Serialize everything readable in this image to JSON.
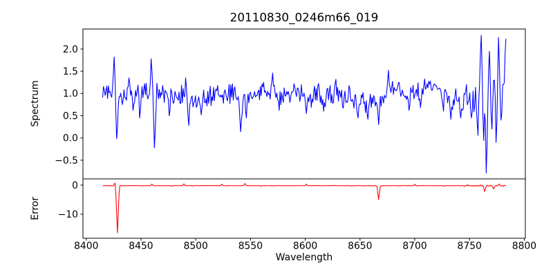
{
  "figure": {
    "title": "20110830_0246m66_019",
    "xlabel": "Wavelength",
    "background_color": "#ffffff",
    "axis_color": "#000000",
    "text_color": "#000000",
    "xlim": [
      8397,
      8801
    ],
    "xticks": [
      {
        "v": 8400,
        "label": "8400"
      },
      {
        "v": 8450,
        "label": "8450"
      },
      {
        "v": 8500,
        "label": "8500"
      },
      {
        "v": 8550,
        "label": "8550"
      },
      {
        "v": 8600,
        "label": "8600"
      },
      {
        "v": 8650,
        "label": "8650"
      },
      {
        "v": 8700,
        "label": "8700"
      },
      {
        "v": 8750,
        "label": "8750"
      },
      {
        "v": 8800,
        "label": "8800"
      }
    ]
  },
  "chart_data": [
    {
      "type": "line",
      "name": "spectrum",
      "title": "20110830_0246m66_019",
      "xlabel": "",
      "ylabel": "Spectrum",
      "color": "#0000ff",
      "line_width": 1.1,
      "grid": false,
      "legend": null,
      "x_start": 8415,
      "x_end": 8783,
      "x_step": 0.75,
      "ylim": [
        -0.92,
        2.45
      ],
      "yticks": [
        {
          "v": -0.5,
          "label": "−0.5"
        },
        {
          "v": 0.0,
          "label": "0.0"
        },
        {
          "v": 0.5,
          "label": "0.5"
        },
        {
          "v": 1.0,
          "label": "1.0"
        },
        {
          "v": 1.5,
          "label": "1.5"
        },
        {
          "v": 2.0,
          "label": "2.0"
        }
      ],
      "baseline": [
        [
          8415,
          1.0
        ],
        [
          8430,
          0.98
        ],
        [
          8455,
          1.0
        ],
        [
          8475,
          0.95
        ],
        [
          8500,
          0.9
        ],
        [
          8515,
          0.97
        ],
        [
          8530,
          1.0
        ],
        [
          8542,
          0.88
        ],
        [
          8555,
          0.97
        ],
        [
          8570,
          1.02
        ],
        [
          8590,
          0.95
        ],
        [
          8610,
          0.92
        ],
        [
          8630,
          0.95
        ],
        [
          8645,
          0.82
        ],
        [
          8658,
          0.78
        ],
        [
          8666,
          0.85
        ],
        [
          8674,
          1.02
        ],
        [
          8682,
          1.05
        ],
        [
          8692,
          0.95
        ],
        [
          8702,
          1.0
        ],
        [
          8714,
          1.15
        ],
        [
          8722,
          1.08
        ],
        [
          8732,
          0.88
        ],
        [
          8742,
          0.82
        ],
        [
          8750,
          0.85
        ],
        [
          8758,
          0.95
        ],
        [
          8770,
          1.0
        ],
        [
          8783,
          1.1
        ]
      ],
      "noise_amplitude": 0.28,
      "noisy_region": {
        "x0": 8754,
        "x1": 8783,
        "amplitude": 0.55
      },
      "spikes": [
        {
          "x": 8425.5,
          "y": 1.82,
          "w": 1.6
        },
        {
          "x": 8428,
          "y": -0.02,
          "w": 1.8
        },
        {
          "x": 8433,
          "y": 0.75,
          "w": 1.2
        },
        {
          "x": 8439,
          "y": 1.35,
          "w": 1.4
        },
        {
          "x": 8443,
          "y": 0.62,
          "w": 1.3
        },
        {
          "x": 8449,
          "y": 0.45,
          "w": 1.3
        },
        {
          "x": 8453,
          "y": 1.22,
          "w": 1.3
        },
        {
          "x": 8459.5,
          "y": 1.78,
          "w": 1.6
        },
        {
          "x": 8462.5,
          "y": -0.22,
          "w": 1.8
        },
        {
          "x": 8470,
          "y": 1.18,
          "w": 1.3
        },
        {
          "x": 8476,
          "y": 0.5,
          "w": 1.4
        },
        {
          "x": 8491,
          "y": 1.35,
          "w": 1.4
        },
        {
          "x": 8493.5,
          "y": 0.28,
          "w": 1.5
        },
        {
          "x": 8505,
          "y": 0.52,
          "w": 1.4
        },
        {
          "x": 8520,
          "y": 1.18,
          "w": 1.3
        },
        {
          "x": 8541,
          "y": 0.14,
          "w": 1.7
        },
        {
          "x": 8546,
          "y": 0.45,
          "w": 1.4
        },
        {
          "x": 8562,
          "y": 1.25,
          "w": 1.3
        },
        {
          "x": 8570,
          "y": 1.46,
          "w": 1.4
        },
        {
          "x": 8576,
          "y": 0.62,
          "w": 1.3
        },
        {
          "x": 8590,
          "y": 1.22,
          "w": 1.3
        },
        {
          "x": 8601,
          "y": 0.55,
          "w": 1.4
        },
        {
          "x": 8612,
          "y": 1.22,
          "w": 1.3
        },
        {
          "x": 8617,
          "y": 0.6,
          "w": 1.3
        },
        {
          "x": 8628,
          "y": 1.32,
          "w": 1.3
        },
        {
          "x": 8640,
          "y": 1.18,
          "w": 1.3
        },
        {
          "x": 8648,
          "y": 0.45,
          "w": 1.6
        },
        {
          "x": 8657,
          "y": 0.42,
          "w": 1.6
        },
        {
          "x": 8667,
          "y": 0.3,
          "w": 1.7
        },
        {
          "x": 8676,
          "y": 1.52,
          "w": 1.4
        },
        {
          "x": 8686,
          "y": 1.25,
          "w": 1.3
        },
        {
          "x": 8695,
          "y": 0.62,
          "w": 1.3
        },
        {
          "x": 8705,
          "y": 0.68,
          "w": 1.3
        },
        {
          "x": 8714,
          "y": 1.28,
          "w": 1.3
        },
        {
          "x": 8726,
          "y": 0.6,
          "w": 1.3
        },
        {
          "x": 8733,
          "y": 0.42,
          "w": 1.4
        },
        {
          "x": 8742,
          "y": 0.45,
          "w": 1.4
        },
        {
          "x": 8747,
          "y": 1.2,
          "w": 1.3
        },
        {
          "x": 8752,
          "y": 0.45,
          "w": 1.4
        },
        {
          "x": 8757.5,
          "y": 0.06,
          "w": 1.5
        },
        {
          "x": 8760.5,
          "y": 2.31,
          "w": 1.6
        },
        {
          "x": 8763,
          "y": -0.06,
          "w": 1.4
        },
        {
          "x": 8765.5,
          "y": -0.79,
          "w": 1.6
        },
        {
          "x": 8768,
          "y": 1.95,
          "w": 1.5
        },
        {
          "x": 8770.5,
          "y": 0.2,
          "w": 1.4
        },
        {
          "x": 8772.5,
          "y": 1.3,
          "w": 1.3
        },
        {
          "x": 8774.5,
          "y": -0.1,
          "w": 1.4
        },
        {
          "x": 8776.5,
          "y": 2.26,
          "w": 1.5
        },
        {
          "x": 8779,
          "y": 0.4,
          "w": 1.4
        },
        {
          "x": 8781,
          "y": 1.2,
          "w": 1.3
        },
        {
          "x": 8783,
          "y": 2.23,
          "w": 1.5
        }
      ]
    },
    {
      "type": "line",
      "name": "error",
      "title": "",
      "xlabel": "Wavelength",
      "ylabel": "Error",
      "color": "#ff0000",
      "line_width": 1.1,
      "grid": false,
      "legend": null,
      "x_start": 8415,
      "x_end": 8783,
      "x_step": 0.75,
      "ylim": [
        -18.3,
        2.14
      ],
      "yticks": [
        {
          "v": -10,
          "label": "−10"
        },
        {
          "v": 0,
          "label": "0"
        }
      ],
      "baseline": [
        [
          8415,
          -0.2
        ],
        [
          8783,
          -0.2
        ]
      ],
      "noise_amplitude": 0.1,
      "noisy_region": {
        "x0": 8748,
        "x1": 8783,
        "amplitude": 0.3
      },
      "spikes": [
        {
          "x": 8426,
          "y": 0.7,
          "w": 1.2
        },
        {
          "x": 8428.5,
          "y": -16.4,
          "w": 1.8
        },
        {
          "x": 8460,
          "y": 0.35,
          "w": 1.2
        },
        {
          "x": 8478,
          "y": -0.4,
          "w": 1.2
        },
        {
          "x": 8489,
          "y": 0.4,
          "w": 1.2
        },
        {
          "x": 8524,
          "y": 0.3,
          "w": 1.2
        },
        {
          "x": 8545,
          "y": 0.55,
          "w": 1.4
        },
        {
          "x": 8560,
          "y": -0.4,
          "w": 1.2
        },
        {
          "x": 8601,
          "y": 0.35,
          "w": 1.2
        },
        {
          "x": 8642,
          "y": -0.35,
          "w": 1.2
        },
        {
          "x": 8667,
          "y": -5.0,
          "w": 1.6
        },
        {
          "x": 8700,
          "y": 0.3,
          "w": 1.2
        },
        {
          "x": 8726,
          "y": -0.4,
          "w": 1.2
        },
        {
          "x": 8745,
          "y": -0.5,
          "w": 1.2
        },
        {
          "x": 8764,
          "y": -2.2,
          "w": 1.5
        },
        {
          "x": 8772,
          "y": -1.3,
          "w": 1.4
        },
        {
          "x": 8777,
          "y": 0.35,
          "w": 1.2
        }
      ]
    }
  ]
}
